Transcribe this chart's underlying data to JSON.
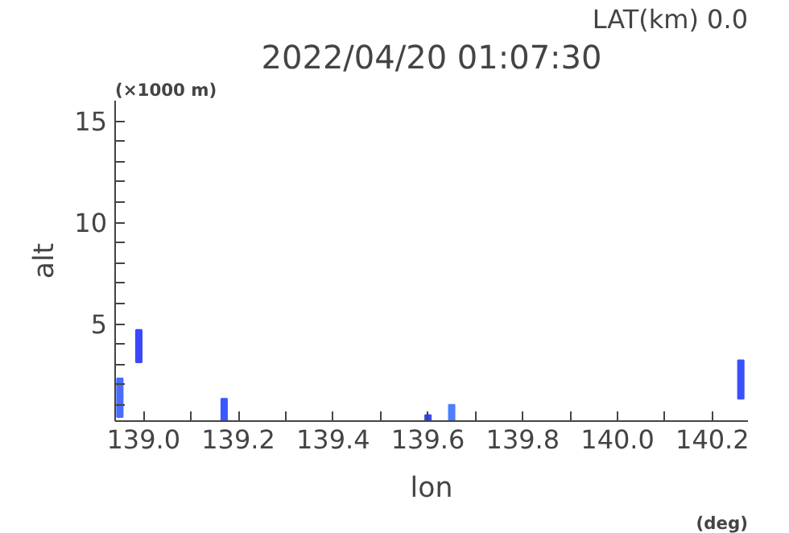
{
  "chart_data": {
    "type": "bar",
    "title": "2022/04/20 01:07:30",
    "xlabel": "lon",
    "ylabel": "alt",
    "annotations": [
      "LAT(km) 0.0",
      "(×1000 m)",
      "(deg)"
    ],
    "x": [
      138.95,
      138.99,
      139.17,
      139.6,
      139.65,
      140.26
    ],
    "base": [
      0.4,
      3.1,
      0.2,
      0.2,
      0.2,
      1.3
    ],
    "values": [
      1.9,
      1.6,
      1.1,
      0.3,
      0.8,
      1.9
    ],
    "colors": [
      "#4a6cff",
      "#3a48ff",
      "#3a58ff",
      "#3a48ff",
      "#4a80ff",
      "#3a50ff"
    ],
    "xlim": [
      138.94,
      140.275
    ],
    "ylim": [
      0.2,
      16
    ],
    "xticks": [
      {
        "value": 139.0,
        "label": "139.0"
      },
      {
        "value": 139.1,
        "label": null
      },
      139.2,
      {
        "value": 139.3,
        "label": null
      },
      139.4,
      {
        "value": 139.5,
        "label": null
      },
      139.6,
      {
        "value": 139.7,
        "label": null
      },
      139.8,
      {
        "value": 139.9,
        "label": null
      },
      {
        "value": 140.0,
        "label": "140.0"
      },
      {
        "value": 140.1,
        "label": null
      },
      140.2
    ],
    "yticks": [
      {
        "value": 1,
        "label": null
      },
      {
        "value": 2,
        "label": null
      },
      {
        "value": 3,
        "label": null
      },
      {
        "value": 4,
        "label": null
      },
      5,
      {
        "value": 6,
        "label": null
      },
      {
        "value": 7,
        "label": null
      },
      {
        "value": 8,
        "label": null
      },
      {
        "value": 9,
        "label": null
      },
      10,
      {
        "value": 11,
        "label": null
      },
      {
        "value": 12,
        "label": null
      },
      {
        "value": 13,
        "label": null
      },
      {
        "value": 14,
        "label": null
      },
      15
    ],
    "grid": false
  }
}
